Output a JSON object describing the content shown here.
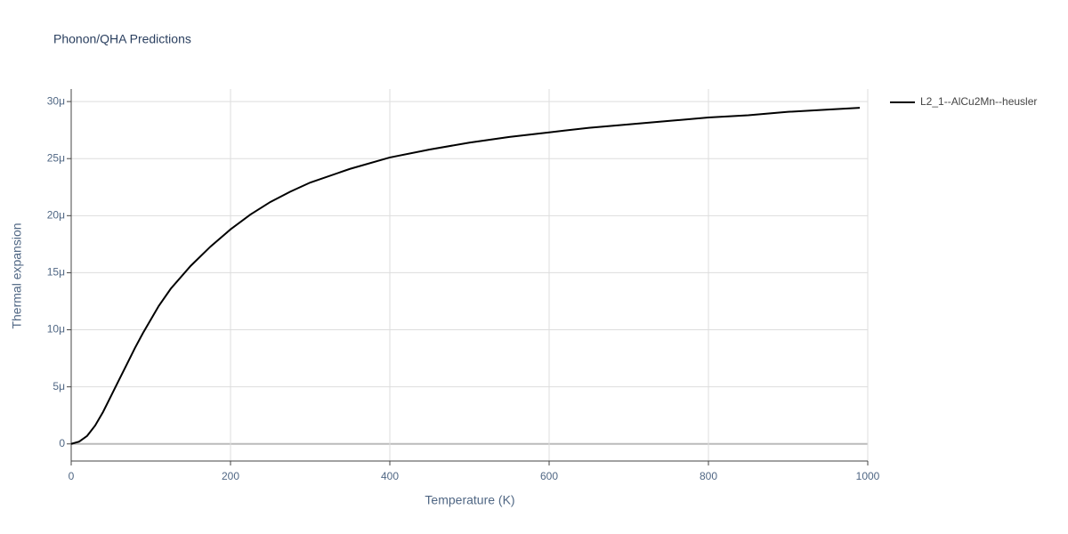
{
  "chart_data": {
    "type": "line",
    "title": "Phonon/QHA Predictions",
    "x_label": "Temperature (K)",
    "y_label": "Thermal expansion",
    "x": [
      0,
      10,
      20,
      30,
      40,
      50,
      60,
      70,
      80,
      90,
      100,
      110,
      125,
      150,
      175,
      200,
      225,
      250,
      275,
      300,
      350,
      400,
      450,
      500,
      550,
      600,
      650,
      700,
      750,
      800,
      850,
      900,
      950,
      990
    ],
    "series": [
      {
        "name": "L2_1--AlCu2Mn--heusler",
        "color": "#000000",
        "values": [
          0,
          2e-07,
          7e-07,
          1.6e-06,
          2.8e-06,
          4.2e-06,
          5.6e-06,
          7e-06,
          8.4e-06,
          9.7e-06,
          1.09e-05,
          1.21e-05,
          1.36e-05,
          1.56e-05,
          1.73e-05,
          1.88e-05,
          2.01e-05,
          2.12e-05,
          2.21e-05,
          2.29e-05,
          2.41e-05,
          2.51e-05,
          2.58e-05,
          2.64e-05,
          2.69e-05,
          2.73e-05,
          2.77e-05,
          2.8e-05,
          2.83e-05,
          2.86e-05,
          2.88e-05,
          2.91e-05,
          2.93e-05,
          2.945e-05
        ]
      }
    ],
    "xlim": [
      0,
      1000
    ],
    "xticks": [
      0,
      200,
      400,
      600,
      800,
      1000
    ],
    "ylim": [
      -1.5e-06,
      3.11e-05
    ],
    "yticks": [
      0,
      {
        "value": 5e-06,
        "label": "5μ"
      },
      {
        "value": 1e-05,
        "label": "10μ"
      },
      {
        "value": 1.5e-05,
        "label": "15μ"
      },
      {
        "value": 2e-05,
        "label": "20μ"
      },
      {
        "value": 2.5e-05,
        "label": "25μ"
      },
      {
        "value": 3e-05,
        "label": "30μ"
      }
    ],
    "grid": true,
    "legend": "right"
  }
}
